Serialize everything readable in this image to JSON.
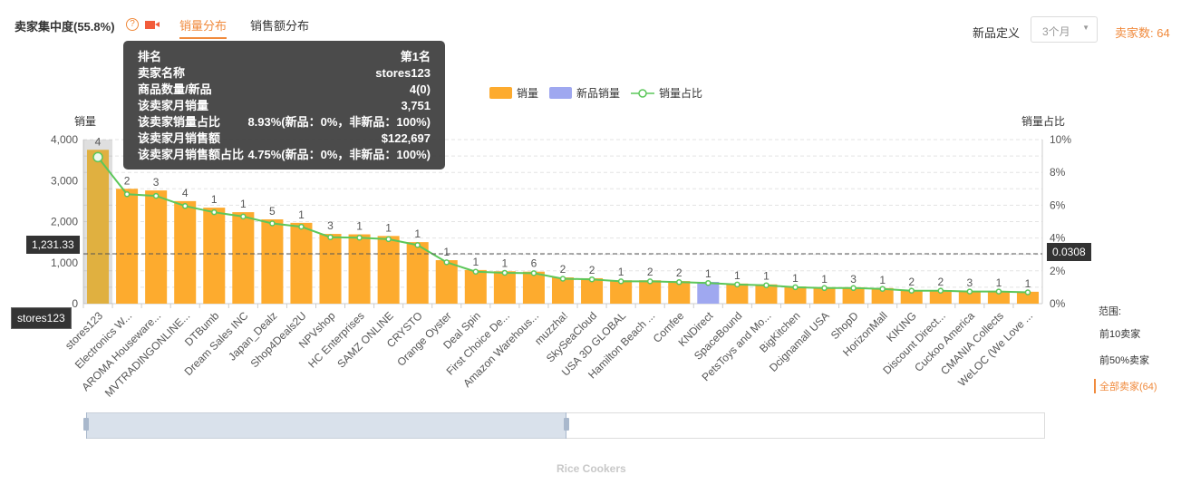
{
  "header": {
    "title": "卖家集中度(55.8%)",
    "help_icon": "?",
    "video_icon": "video-icon",
    "tabs": [
      {
        "label": "销量分布",
        "active": true
      },
      {
        "label": "销售额分布",
        "active": false
      }
    ],
    "new_def_label": "新品定义",
    "new_def_value": "3个月",
    "seller_count": "卖家数: 64"
  },
  "colors": {
    "accent": "#f08a3c",
    "bar": "#fdab2e",
    "new_bar": "#9fa8f0",
    "line": "#5cc75a"
  },
  "legend": [
    "销量",
    "新品销量",
    "销量占比"
  ],
  "range": {
    "label": "范围:",
    "options": [
      "前10卖家",
      "前50%卖家",
      "全部卖家(64)"
    ],
    "active": 2
  },
  "tooltip": {
    "rows": [
      [
        "排名",
        "第1名"
      ],
      [
        "卖家名称",
        "stores123"
      ],
      [
        "商品数量/新品",
        "4(0)"
      ],
      [
        "该卖家月销量",
        "3,751"
      ],
      [
        "该卖家销量占比",
        "8.93%(新品：0%，非新品：100%)"
      ],
      [
        "该卖家月销售额",
        "$122,697"
      ],
      [
        "该卖家月销售额占比",
        "4.75%(新品：0%，非新品：100%)"
      ]
    ]
  },
  "pointer": {
    "left": "1,231.33",
    "right": "0.0308",
    "x": "stores123"
  },
  "category": "Rice Cookers",
  "chart_data": {
    "type": "bar",
    "ylabel": "销量",
    "y2label": "销量占比",
    "ylim": [
      0,
      4000
    ],
    "y2lim": [
      0,
      10
    ],
    "yticks": [
      "0",
      "1,000",
      "2,000",
      "3,000",
      "4,000"
    ],
    "y2ticks": [
      "0%",
      "2%",
      "4%",
      "6%",
      "8%",
      "10%"
    ],
    "categories": [
      "stores123",
      "Electronics W...",
      "AROMA Houseware...",
      "MVTRADINGONLINE...",
      "DTBumb",
      "Dream Sales INC",
      "Japan_Dealz",
      "Shop4Deals2U",
      "NPVshop",
      "HC Enterprises",
      "SAMZ ONLINE",
      "CRYSTO",
      "Orange Oyster",
      "Deal Spin",
      "First Choice De...",
      "Amazon Warehous...",
      "muzzha!",
      "SkySeaCloud",
      "USA 3D GLOBAL",
      "Hamilton Beach ...",
      "Comfee",
      "KNDirect",
      "SpaceBound",
      "PetsToys and Mo...",
      "BigKitchen",
      "Dcignamall USA",
      "ShopD",
      "HorizonMall",
      "KIKING",
      "Discount Direct...",
      "Cuckoo America",
      "CMANIA Collects",
      "WeLOC (We Love ..."
    ],
    "series": [
      {
        "name": "销量",
        "values": [
          3751,
          2800,
          2760,
          2500,
          2340,
          2230,
          2055,
          1970,
          1700,
          1690,
          1650,
          1500,
          1060,
          820,
          790,
          780,
          640,
          620,
          570,
          570,
          550,
          0,
          490,
          470,
          420,
          400,
          400,
          380,
          330,
          330,
          310,
          310,
          290
        ]
      },
      {
        "name": "新品销量",
        "values": [
          0,
          0,
          0,
          0,
          0,
          0,
          0,
          0,
          0,
          0,
          0,
          0,
          0,
          0,
          0,
          0,
          0,
          0,
          0,
          0,
          0,
          530,
          0,
          0,
          0,
          0,
          0,
          0,
          0,
          0,
          0,
          0,
          0
        ]
      },
      {
        "name": "销量占比",
        "values": [
          8.93,
          6.67,
          6.57,
          5.95,
          5.57,
          5.31,
          4.89,
          4.69,
          4.05,
          4.02,
          3.93,
          3.57,
          2.52,
          1.95,
          1.88,
          1.86,
          1.52,
          1.48,
          1.36,
          1.36,
          1.31,
          1.26,
          1.17,
          1.12,
          1.0,
          0.95,
          0.95,
          0.9,
          0.79,
          0.79,
          0.74,
          0.74,
          0.69
        ]
      }
    ],
    "labels": [
      "4",
      "2",
      "3",
      "4",
      "1",
      "1",
      "5",
      "1",
      "3",
      "1",
      "1",
      "1",
      "1",
      "1",
      "1",
      "6",
      "2",
      "2",
      "1",
      "2",
      "2",
      "1",
      "1",
      "1",
      "1",
      "1",
      "3",
      "1",
      "2",
      "2",
      "3",
      "1",
      "1"
    ]
  }
}
